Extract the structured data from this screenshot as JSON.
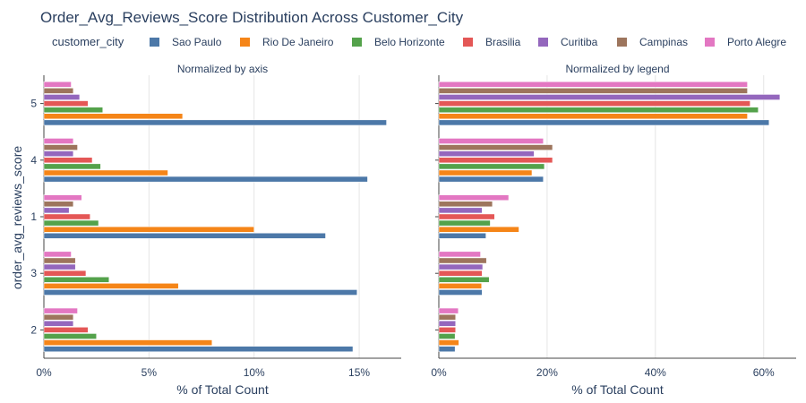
{
  "chart_data": {
    "type": "bar",
    "orientation": "horizontal",
    "title": "Order_Avg_Reviews_Score Distribution Across Customer_City",
    "legend_title": "customer_city",
    "ylabel": "order_avg_reviews_score",
    "categories": [
      "5",
      "4",
      "1",
      "3",
      "2"
    ],
    "series": [
      {
        "name": "Sao Paulo",
        "color": "#4c78a8"
      },
      {
        "name": "Rio De Janeiro",
        "color": "#f58518"
      },
      {
        "name": "Belo Horizonte",
        "color": "#54a24b"
      },
      {
        "name": "Brasilia",
        "color": "#e45756"
      },
      {
        "name": "Curitiba",
        "color": "#9467bd"
      },
      {
        "name": "Campinas",
        "color": "#9d755d"
      },
      {
        "name": "Porto Alegre",
        "color": "#e377c2"
      }
    ],
    "panels": [
      {
        "subtitle": "Normalized by axis",
        "xlabel": "% of Total Count",
        "xlim": [
          0,
          17
        ],
        "xticks": [
          0,
          5,
          10,
          15
        ],
        "xtick_labels": [
          "0%",
          "5%",
          "10%",
          "15%"
        ],
        "values": {
          "5": [
            16.3,
            6.6,
            2.8,
            2.1,
            1.7,
            1.4,
            1.3
          ],
          "4": [
            15.4,
            5.9,
            2.7,
            2.3,
            1.4,
            1.6,
            1.4
          ],
          "1": [
            13.4,
            10.0,
            2.6,
            2.2,
            1.2,
            1.4,
            1.8
          ],
          "3": [
            14.9,
            6.4,
            3.1,
            2.0,
            1.5,
            1.5,
            1.3
          ],
          "2": [
            14.7,
            8.0,
            2.5,
            2.1,
            1.4,
            1.4,
            1.6
          ]
        }
      },
      {
        "subtitle": "Normalized by legend",
        "xlabel": "% of Total Count",
        "xlim": [
          0,
          66
        ],
        "xticks": [
          0,
          20,
          40,
          60
        ],
        "xtick_labels": [
          "0%",
          "20%",
          "40%",
          "60%"
        ],
        "values": {
          "5": [
            61,
            57,
            59,
            57.5,
            63,
            57,
            57
          ],
          "4": [
            19.3,
            17.2,
            19.5,
            21,
            17.6,
            21,
            19.3
          ],
          "1": [
            8.7,
            14.8,
            9.5,
            10.3,
            8.0,
            9.9,
            12.9
          ],
          "3": [
            8.0,
            7.9,
            9.3,
            8.0,
            8.1,
            8.8,
            7.7
          ],
          "2": [
            3.0,
            3.7,
            3.0,
            3.1,
            3.1,
            3.1,
            3.6
          ]
        }
      }
    ]
  }
}
